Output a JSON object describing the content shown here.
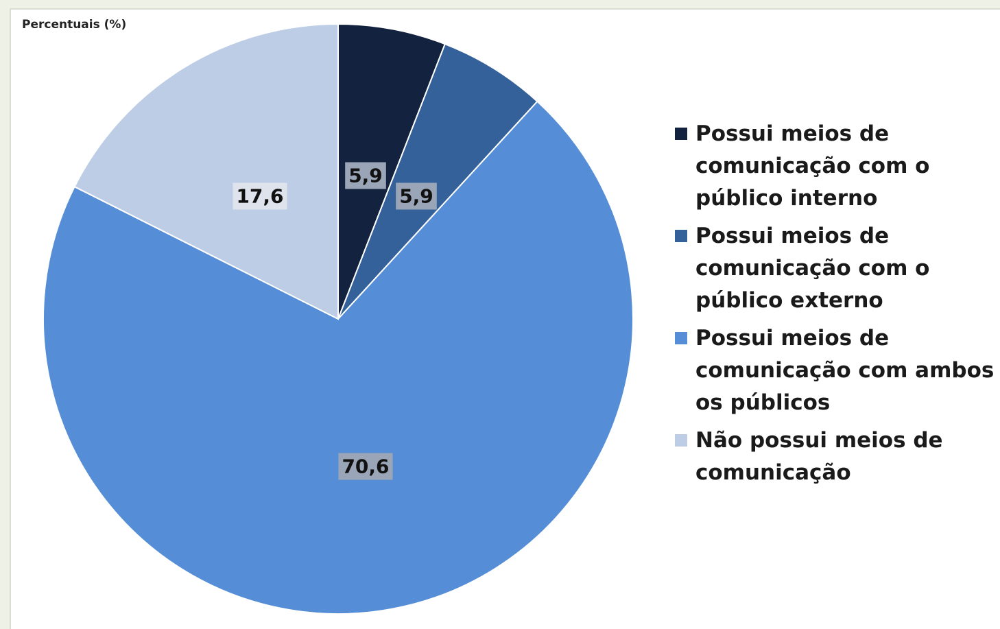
{
  "chart_data": {
    "type": "pie",
    "title": "",
    "unit_label": "Percentuais (%)",
    "legend_position": "right",
    "slices": [
      {
        "label": "Possui meios de comunicação com o público interno",
        "value": 5.9,
        "display": "5,9",
        "color": "#13233f"
      },
      {
        "label": "Possui meios de comunicação com o público externo",
        "value": 5.9,
        "display": "5,9",
        "color": "#34619a"
      },
      {
        "label": "Possui meios de comunicação com ambos os públicos",
        "value": 70.6,
        "display": "70,6",
        "color": "#558ed6"
      },
      {
        "label": "Não possui meios de comunicação",
        "value": 17.6,
        "display": "17,6",
        "color": "#bccde5"
      }
    ]
  }
}
